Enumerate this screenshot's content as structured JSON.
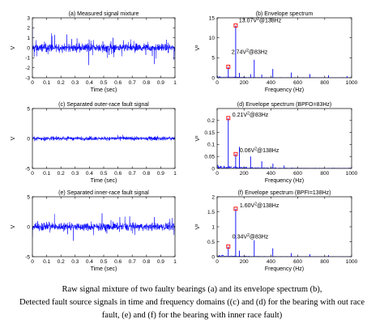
{
  "caption": {
    "line1": "Raw signal mixture of two faulty bearings (a) and its envelope spectrum (b),",
    "line2": "Detected fault source signals in time and frequency domains ((c) and (d) for the bearing with out race",
    "line3": "fault, (e) and (f) for the bearing with inner race fault)"
  },
  "colors": {
    "series": "#0000ff",
    "marker": "#ff0000",
    "axis": "#000000"
  },
  "chart_data": [
    {
      "id": "a",
      "type": "line",
      "title": "(a) Measured signal mixture",
      "xlabel": "Time (sec)",
      "ylabel": "V",
      "xlim": [
        0,
        1
      ],
      "ylim": [
        -3,
        3
      ],
      "xticks": [
        0,
        0.1,
        0.2,
        0.3,
        0.4,
        0.5,
        0.6,
        0.7,
        0.8,
        0.9,
        1
      ],
      "xticklabels": [
        "0",
        "0.1",
        "0.2",
        "0.3",
        "0.4",
        "0.5",
        "0.6",
        "0.7",
        "0.8",
        "0.9",
        "1"
      ],
      "yticks": [
        -3,
        -2,
        -1,
        0,
        1,
        2,
        3
      ],
      "yticklabels": [
        "-3",
        "-2",
        "-1",
        "0",
        "1",
        "2",
        "3"
      ],
      "signal": {
        "noise_amplitude": 0.55,
        "impulse_amplitude": 1.6,
        "impulse_periods_sec": [
          0.01205,
          0.00725
        ]
      }
    },
    {
      "id": "b",
      "type": "line",
      "title": "(b) Envelope spectrum",
      "xlabel": "Frequency (Hz)",
      "ylabel": "V²",
      "xlim": [
        0,
        1000
      ],
      "ylim": [
        0,
        15
      ],
      "xticks": [
        0,
        200,
        400,
        600,
        800,
        1000
      ],
      "xticklabels": [
        "0",
        "200",
        "400",
        "600",
        "800",
        "1000"
      ],
      "yticks": [
        0,
        5,
        10,
        15
      ],
      "yticklabels": [
        "0",
        "5",
        "10",
        "15"
      ],
      "peaks": [
        {
          "f": 83,
          "a": 2.74
        },
        {
          "f": 138,
          "a": 13.07
        },
        {
          "f": 166,
          "a": 1.2
        },
        {
          "f": 276,
          "a": 4.5
        },
        {
          "f": 249,
          "a": 0.9
        },
        {
          "f": 332,
          "a": 0.8
        },
        {
          "f": 414,
          "a": 2.2
        },
        {
          "f": 552,
          "a": 1.3
        },
        {
          "f": 690,
          "a": 0.9
        },
        {
          "f": 828,
          "a": 0.6
        },
        {
          "f": 966,
          "a": 0.4
        }
      ],
      "noise_floor": 0.4,
      "annotations": [
        {
          "text": "13.07V²@138Hz",
          "x": 138,
          "y": 13.07
        },
        {
          "text": "2.74V²@83Hz",
          "x": 83,
          "y": 2.74
        }
      ]
    },
    {
      "id": "c",
      "type": "line",
      "title": "(c) Separated outer-race fault signal",
      "xlabel": "Time (sec)",
      "ylabel": "V",
      "xlim": [
        0,
        1
      ],
      "ylim": [
        -5,
        5
      ],
      "xticks": [
        0,
        0.1,
        0.2,
        0.3,
        0.4,
        0.5,
        0.6,
        0.7,
        0.8,
        0.9,
        1
      ],
      "xticklabels": [
        "0",
        "0.1",
        "0.2",
        "0.3",
        "0.4",
        "0.5",
        "0.6",
        "0.7",
        "0.8",
        "0.9",
        "1"
      ],
      "yticks": [
        -5,
        0,
        5
      ],
      "yticklabels": [
        "-5",
        "0",
        "5"
      ],
      "signal": {
        "noise_amplitude": 0.45,
        "impulse_amplitude": 0.5,
        "impulse_periods_sec": [
          0.01205
        ]
      }
    },
    {
      "id": "d",
      "type": "line",
      "title": "(d) Envelope spectrum (BPFO=83Hz)",
      "xlabel": "Frequency (Hz)",
      "ylabel": "V²",
      "xlim": [
        0,
        1000
      ],
      "ylim": [
        0,
        0.25
      ],
      "xticks": [
        0,
        200,
        400,
        600,
        800,
        1000
      ],
      "xticklabels": [
        "0",
        "200",
        "400",
        "600",
        "800",
        "1000"
      ],
      "yticks": [
        0,
        0.05,
        0.1,
        0.15,
        0.2
      ],
      "yticklabels": [
        "0",
        "0.05",
        "0.1",
        "0.15",
        "0.2"
      ],
      "peaks": [
        {
          "f": 83,
          "a": 0.21
        },
        {
          "f": 138,
          "a": 0.06
        },
        {
          "f": 166,
          "a": 0.09
        },
        {
          "f": 249,
          "a": 0.05
        },
        {
          "f": 332,
          "a": 0.03
        },
        {
          "f": 415,
          "a": 0.02
        },
        {
          "f": 498,
          "a": 0.012
        }
      ],
      "noise_floor": 0.015,
      "annotations": [
        {
          "text": "0.21V²@83Hz",
          "x": 83,
          "y": 0.21
        },
        {
          "text": "0.06V²@138Hz",
          "x": 138,
          "y": 0.06
        }
      ]
    },
    {
      "id": "e",
      "type": "line",
      "title": "(e) Separated inner-race fault signal",
      "xlabel": "Time (sec)",
      "ylabel": "V",
      "xlim": [
        0,
        1
      ],
      "ylim": [
        -5,
        5
      ],
      "xticks": [
        0,
        0.1,
        0.2,
        0.3,
        0.4,
        0.5,
        0.6,
        0.7,
        0.8,
        0.9,
        1
      ],
      "xticklabels": [
        "0",
        "0.1",
        "0.2",
        "0.3",
        "0.4",
        "0.5",
        "0.6",
        "0.7",
        "0.8",
        "0.9",
        "1"
      ],
      "yticks": [
        -5,
        0,
        5
      ],
      "yticklabels": [
        "-5",
        "0",
        "5"
      ],
      "signal": {
        "noise_amplitude": 0.9,
        "impulse_amplitude": 2.2,
        "impulse_periods_sec": [
          0.00725
        ]
      }
    },
    {
      "id": "f",
      "type": "line",
      "title": "(f) Envelope spectrum (BPFI=138Hz)",
      "xlabel": "Frequency (Hz)",
      "ylabel": "V²",
      "xlim": [
        0,
        1000
      ],
      "ylim": [
        0,
        2
      ],
      "xticks": [
        0,
        200,
        400,
        600,
        800,
        1000
      ],
      "xticklabels": [
        "0",
        "200",
        "400",
        "600",
        "800",
        "1000"
      ],
      "yticks": [
        0,
        0.5,
        1,
        1.5,
        2
      ],
      "yticklabels": [
        "0",
        "0.5",
        "1",
        "1.5",
        "2"
      ],
      "peaks": [
        {
          "f": 83,
          "a": 0.34
        },
        {
          "f": 138,
          "a": 1.6
        },
        {
          "f": 166,
          "a": 0.2
        },
        {
          "f": 276,
          "a": 0.55
        },
        {
          "f": 414,
          "a": 0.28
        },
        {
          "f": 552,
          "a": 0.12
        },
        {
          "f": 690,
          "a": 0.08
        },
        {
          "f": 828,
          "a": 0.05
        }
      ],
      "noise_floor": 0.06,
      "annotations": [
        {
          "text": "1.60V²@138Hz",
          "x": 138,
          "y": 1.6
        },
        {
          "text": "0.34V²@83Hz",
          "x": 83,
          "y": 0.34
        }
      ]
    }
  ]
}
